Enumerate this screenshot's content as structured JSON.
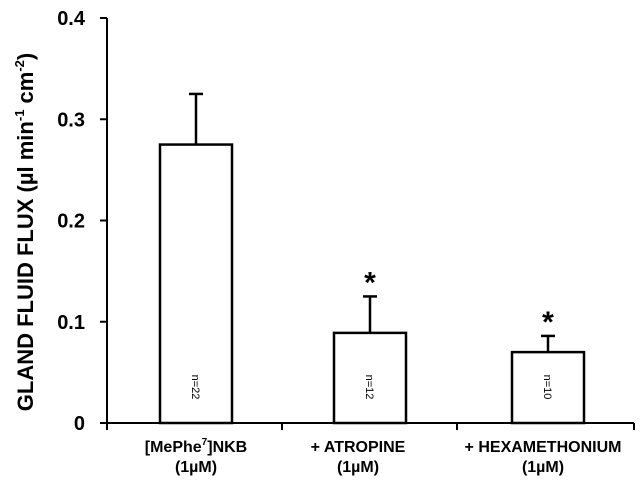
{
  "chart_data": {
    "type": "bar",
    "categories": [
      {
        "line1_pre": "[MePhe",
        "line1_sup": "7",
        "line1_post": "]NKB",
        "line2": "(1µM)"
      },
      {
        "line1_pre": "+ ATROPINE",
        "line1_sup": "",
        "line1_post": "",
        "line2": "(1µM)"
      },
      {
        "line1_pre": "+ HEXAMETHONIUM",
        "line1_sup": "",
        "line1_post": "",
        "line2": "(1µM)"
      }
    ],
    "values": [
      0.275,
      0.089,
      0.07
    ],
    "errors": [
      0.05,
      0.036,
      0.016
    ],
    "n_labels": [
      "n=22",
      "n=12",
      "n=10"
    ],
    "significance": [
      "",
      "*",
      "*"
    ],
    "ylabel": {
      "main": "GLAND FLUID FLUX (µl min",
      "sup1": "-1",
      "mid": " cm",
      "sup2": "-2",
      "end": ")"
    },
    "yticks": [
      "0",
      "0.1",
      "0.2",
      "0.3",
      "0.4"
    ],
    "ylim": [
      0,
      0.4
    ],
    "grid": false,
    "bar_fill": "#ffffff",
    "bar_stroke": "#000000"
  }
}
